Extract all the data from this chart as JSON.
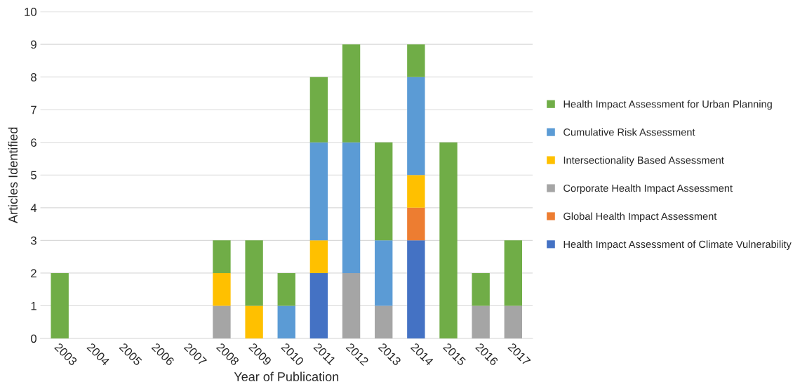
{
  "chart_data": {
    "type": "bar",
    "stacked": true,
    "xlabel": "Year of Publication",
    "ylabel": "Articles Identified",
    "categories": [
      "2003",
      "2004",
      "2005",
      "2006",
      "2007",
      "2008",
      "2009",
      "2010",
      "2011",
      "2012",
      "2013",
      "2014",
      "2015",
      "2016",
      "2017"
    ],
    "series": [
      {
        "name": "Health Impact Assessment of Climate Vulnerability",
        "color": "#4472c4",
        "values": [
          null,
          null,
          null,
          null,
          null,
          null,
          null,
          null,
          2,
          null,
          null,
          3,
          null,
          null,
          null
        ]
      },
      {
        "name": "Global Health Impact Assessment",
        "color": "#ed7d31",
        "values": [
          null,
          null,
          null,
          null,
          null,
          null,
          null,
          null,
          null,
          null,
          null,
          1,
          null,
          null,
          null
        ]
      },
      {
        "name": "Corporate Health Impact Assessment",
        "color": "#a5a5a5",
        "values": [
          null,
          null,
          null,
          null,
          null,
          1,
          null,
          null,
          null,
          2,
          1,
          null,
          null,
          1,
          1
        ]
      },
      {
        "name": "Intersectionality Based Assessment",
        "color": "#ffc000",
        "values": [
          null,
          null,
          null,
          null,
          null,
          1,
          1,
          null,
          1,
          null,
          null,
          1,
          null,
          null,
          null
        ]
      },
      {
        "name": "Cumulative Risk Assessment",
        "color": "#5b9bd5",
        "values": [
          null,
          null,
          null,
          null,
          null,
          null,
          null,
          1,
          3,
          4,
          2,
          3,
          null,
          null,
          null
        ]
      },
      {
        "name": "Health Impact Assessment for Urban Planning",
        "color": "#70ad47",
        "values": [
          2,
          null,
          null,
          null,
          null,
          1,
          2,
          1,
          2,
          3,
          3,
          1,
          6,
          1,
          2
        ]
      }
    ],
    "ylim": [
      0,
      10
    ],
    "yticks": [
      0,
      1,
      2,
      3,
      4,
      5,
      6,
      7,
      8,
      9,
      10
    ],
    "grid": "y",
    "legend": "right"
  }
}
